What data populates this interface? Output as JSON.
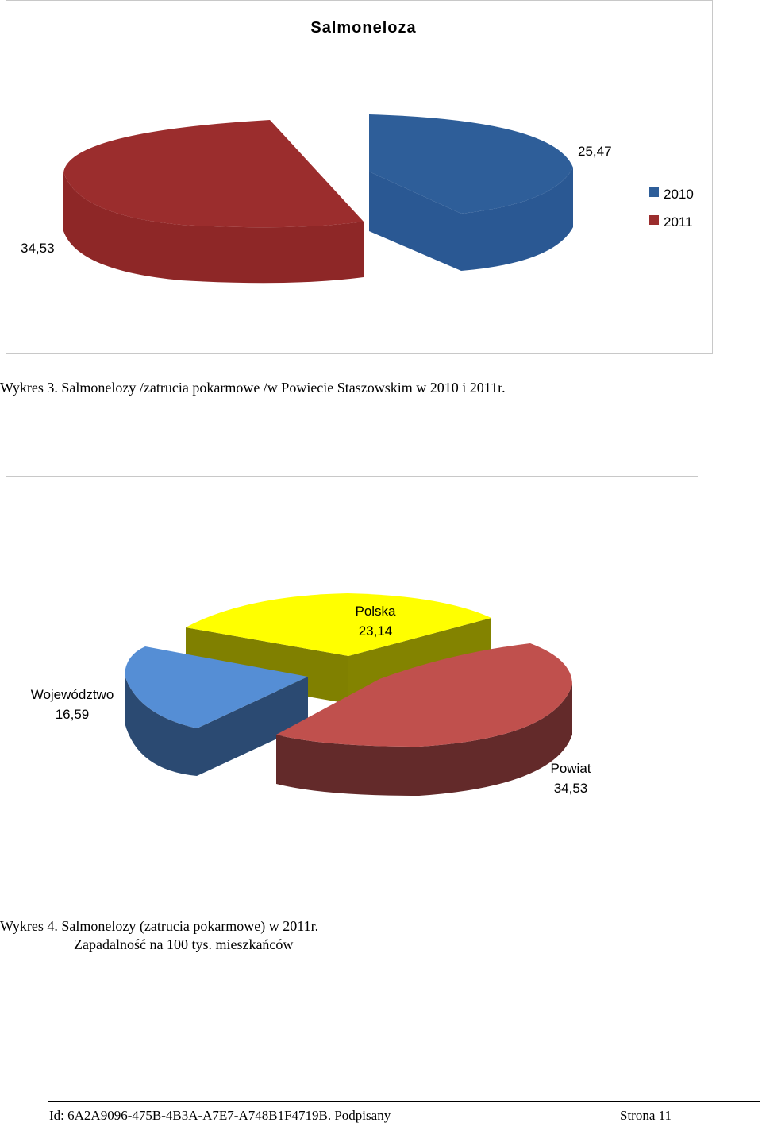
{
  "chart_data": [
    {
      "type": "pie",
      "title": "Salmoneloza",
      "categories": [
        "2010",
        "2011"
      ],
      "values": [
        25.47,
        34.53
      ],
      "value_labels": [
        "25,47",
        "34,53"
      ],
      "colors": [
        "#2E5E99",
        "#9B2D2D"
      ],
      "legend": {
        "placement": "right",
        "entries": [
          "2010",
          "2011"
        ]
      },
      "style": "3d-exploded"
    },
    {
      "type": "pie",
      "title": "",
      "categories": [
        "Polska",
        "Powiat",
        "Województwo"
      ],
      "values": [
        23.14,
        34.53,
        16.59
      ],
      "value_labels": [
        "23,14",
        "34,53",
        "16,59"
      ],
      "colors": [
        "#FFFF00",
        "#C0504D",
        "#558ED5"
      ],
      "style": "3d-exploded"
    }
  ],
  "captions": {
    "chart1": "Wykres 3. Salmonelozy /zatrucia pokarmowe /w Powiecie Staszowskim w 2010 i 2011r.",
    "chart2_line1": "Wykres 4. Salmonelozy (zatrucia pokarmowe) w 2011r.",
    "chart2_line2": "Zapadalność na 100 tys. mieszkańców"
  },
  "footer": {
    "id_text": "Id: 6A2A9096-475B-4B3A-A7E7-A748B1F4719B. Podpisany",
    "page_text": "Strona 11"
  }
}
